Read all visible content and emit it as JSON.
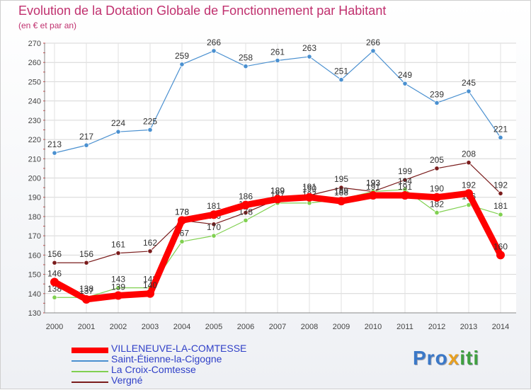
{
  "chart_data": {
    "type": "line",
    "title": "Evolution de la Dotation Globale de Fonctionnement par Habitant",
    "subtitle": "(en € et par an)",
    "categories": [
      "2000",
      "2001",
      "2002",
      "2003",
      "2004",
      "2005",
      "2006",
      "2007",
      "2008",
      "2009",
      "2010",
      "2011",
      "2012",
      "2013",
      "2014"
    ],
    "ylim": [
      130,
      270
    ],
    "yticks": [
      130,
      140,
      150,
      160,
      170,
      180,
      190,
      200,
      210,
      220,
      230,
      240,
      250,
      260,
      270
    ],
    "grid": true,
    "series": [
      {
        "name": "Vergné",
        "color": "#7a1c1c",
        "values": [
          156,
          156,
          161,
          162,
          178,
          176,
          182,
          189,
          191,
          195,
          193,
          199,
          205,
          208,
          192
        ]
      },
      {
        "name": "La Croix-Comtesse",
        "color": "#80d050",
        "values": [
          138,
          138,
          143,
          143,
          167,
          170,
          178,
          187,
          187,
          189,
          193,
          194,
          182,
          186,
          181
        ]
      },
      {
        "name": "Saint-Étienne-la-Cigogne",
        "color": "#4a90d0",
        "values": [
          213,
          217,
          224,
          225,
          259,
          266,
          258,
          261,
          263,
          251,
          266,
          249,
          239,
          245,
          221
        ]
      },
      {
        "name": "VILLENEUVE-LA-COMTESSE",
        "color": "#ff0000",
        "values": [
          146,
          137,
          139,
          140,
          178,
          181,
          186,
          189,
          190,
          188,
          191,
          191,
          190,
          192,
          160
        ]
      }
    ],
    "legend_order": [
      3,
      2,
      1,
      0
    ]
  },
  "logo": {
    "p1": "Pro",
    "p2": "x",
    "p3": "iti"
  }
}
